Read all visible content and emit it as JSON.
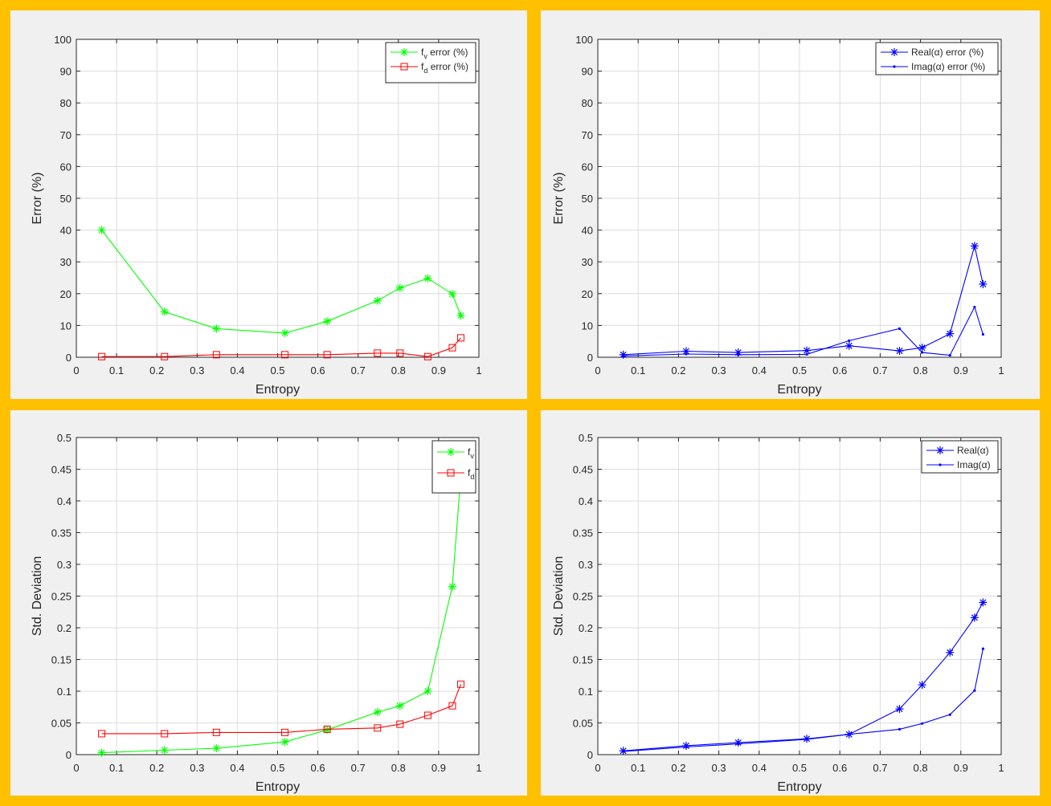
{
  "chart_data": [
    {
      "type": "line",
      "xlabel": "Entropy",
      "ylabel": "Error (%)",
      "xlim": [
        0,
        1
      ],
      "ylim": [
        0,
        100
      ],
      "xticks": [
        "0",
        "0.1",
        "0.2",
        "0.3",
        "0.4",
        "0.5",
        "0.6",
        "0.7",
        "0.8",
        "0.9",
        "1"
      ],
      "yticks": [
        "0",
        "10",
        "20",
        "30",
        "40",
        "50",
        "60",
        "70",
        "80",
        "90",
        "100"
      ],
      "grid": true,
      "legend_position": "top-right",
      "x": [
        0.063,
        0.219,
        0.348,
        0.518,
        0.623,
        0.748,
        0.804,
        0.873,
        0.934,
        0.955
      ],
      "series": [
        {
          "name": "f_v error (%)",
          "legend_main": "f",
          "legend_sub": "v",
          "legend_rest": " error (%)",
          "color": "#00FF00",
          "marker": "asterisk",
          "values": [
            40.0,
            14.3,
            9.0,
            7.6,
            11.3,
            17.8,
            21.8,
            24.8,
            19.9,
            13.1
          ]
        },
        {
          "name": "f_d error (%)",
          "legend_main": "f",
          "legend_sub": "d",
          "legend_rest": " error (%)",
          "color": "#FF0000",
          "marker": "square",
          "values": [
            0.2,
            0.2,
            0.8,
            0.8,
            0.8,
            1.3,
            1.3,
            0.2,
            3.0,
            6.1
          ]
        }
      ]
    },
    {
      "type": "line",
      "xlabel": "Entropy",
      "ylabel": "Error (%)",
      "xlim": [
        0,
        1
      ],
      "ylim": [
        0,
        100
      ],
      "xticks": [
        "0",
        "0.1",
        "0.2",
        "0.3",
        "0.4",
        "0.5",
        "0.6",
        "0.7",
        "0.8",
        "0.9",
        "1"
      ],
      "yticks": [
        "0",
        "10",
        "20",
        "30",
        "40",
        "50",
        "60",
        "70",
        "80",
        "90",
        "100"
      ],
      "grid": true,
      "legend_position": "top-right",
      "x": [
        0.063,
        0.219,
        0.348,
        0.518,
        0.623,
        0.748,
        0.804,
        0.873,
        0.934,
        0.955
      ],
      "series": [
        {
          "name": "Real(α) error (%)",
          "legend_main": "Real(α) error (%)",
          "legend_sub": "",
          "legend_rest": "",
          "color": "#0000FF",
          "marker": "asterisk",
          "values": [
            0.8,
            1.9,
            1.5,
            2.1,
            3.6,
            2.0,
            3.0,
            7.4,
            35.0,
            23.0
          ]
        },
        {
          "name": "Imag(α) error (%)",
          "legend_main": "Imag(α) error (%)",
          "legend_sub": "",
          "legend_rest": "",
          "color": "#0000FF",
          "marker": "dot",
          "values": [
            0.4,
            1.0,
            0.8,
            0.9,
            5.2,
            9.0,
            1.5,
            0.6,
            15.8,
            7.2
          ]
        }
      ]
    },
    {
      "type": "line",
      "xlabel": "Entropy",
      "ylabel": "Std. Deviation",
      "xlim": [
        0,
        1
      ],
      "ylim": [
        0,
        0.5
      ],
      "xticks": [
        "0",
        "0.1",
        "0.2",
        "0.3",
        "0.4",
        "0.5",
        "0.6",
        "0.7",
        "0.8",
        "0.9",
        "1"
      ],
      "yticks": [
        "0",
        "0.05",
        "0.1",
        "0.15",
        "0.2",
        "0.25",
        "0.3",
        "0.35",
        "0.4",
        "0.45",
        "0.5"
      ],
      "grid": true,
      "legend_position": "top-right",
      "x": [
        0.063,
        0.219,
        0.348,
        0.518,
        0.623,
        0.748,
        0.804,
        0.873,
        0.934,
        0.955
      ],
      "series": [
        {
          "name": "f_v",
          "legend_main": "f",
          "legend_sub": "v",
          "legend_rest": "",
          "color": "#00FF00",
          "marker": "asterisk",
          "values": [
            0.003,
            0.007,
            0.01,
            0.02,
            0.039,
            0.067,
            0.077,
            0.1,
            0.265,
            0.44
          ]
        },
        {
          "name": "f_d",
          "legend_main": "f",
          "legend_sub": "d",
          "legend_rest": "",
          "color": "#FF0000",
          "marker": "square",
          "values": [
            0.033,
            0.033,
            0.035,
            0.035,
            0.04,
            0.042,
            0.048,
            0.062,
            0.077,
            0.111
          ]
        }
      ]
    },
    {
      "type": "line",
      "xlabel": "Entropy",
      "ylabel": "Std. Deviation",
      "xlim": [
        0,
        1
      ],
      "ylim": [
        0,
        0.5
      ],
      "xticks": [
        "0",
        "0.1",
        "0.2",
        "0.3",
        "0.4",
        "0.5",
        "0.6",
        "0.7",
        "0.8",
        "0.9",
        "1"
      ],
      "yticks": [
        "0",
        "0.05",
        "0.1",
        "0.15",
        "0.2",
        "0.25",
        "0.3",
        "0.35",
        "0.4",
        "0.45",
        "0.5"
      ],
      "grid": true,
      "legend_position": "top-right",
      "x": [
        0.063,
        0.219,
        0.348,
        0.518,
        0.623,
        0.748,
        0.804,
        0.873,
        0.934,
        0.955
      ],
      "series": [
        {
          "name": "Real(α)",
          "legend_main": "Real(α)",
          "legend_sub": "",
          "legend_rest": "",
          "color": "#0000FF",
          "marker": "asterisk",
          "values": [
            0.006,
            0.014,
            0.019,
            0.025,
            0.032,
            0.072,
            0.11,
            0.161,
            0.216,
            0.24
          ]
        },
        {
          "name": "Imag(α)",
          "legend_main": "Imag(α)",
          "legend_sub": "",
          "legend_rest": "",
          "color": "#0000FF",
          "marker": "dot",
          "values": [
            0.005,
            0.012,
            0.017,
            0.024,
            0.032,
            0.04,
            0.049,
            0.063,
            0.101,
            0.167
          ]
        }
      ]
    }
  ]
}
